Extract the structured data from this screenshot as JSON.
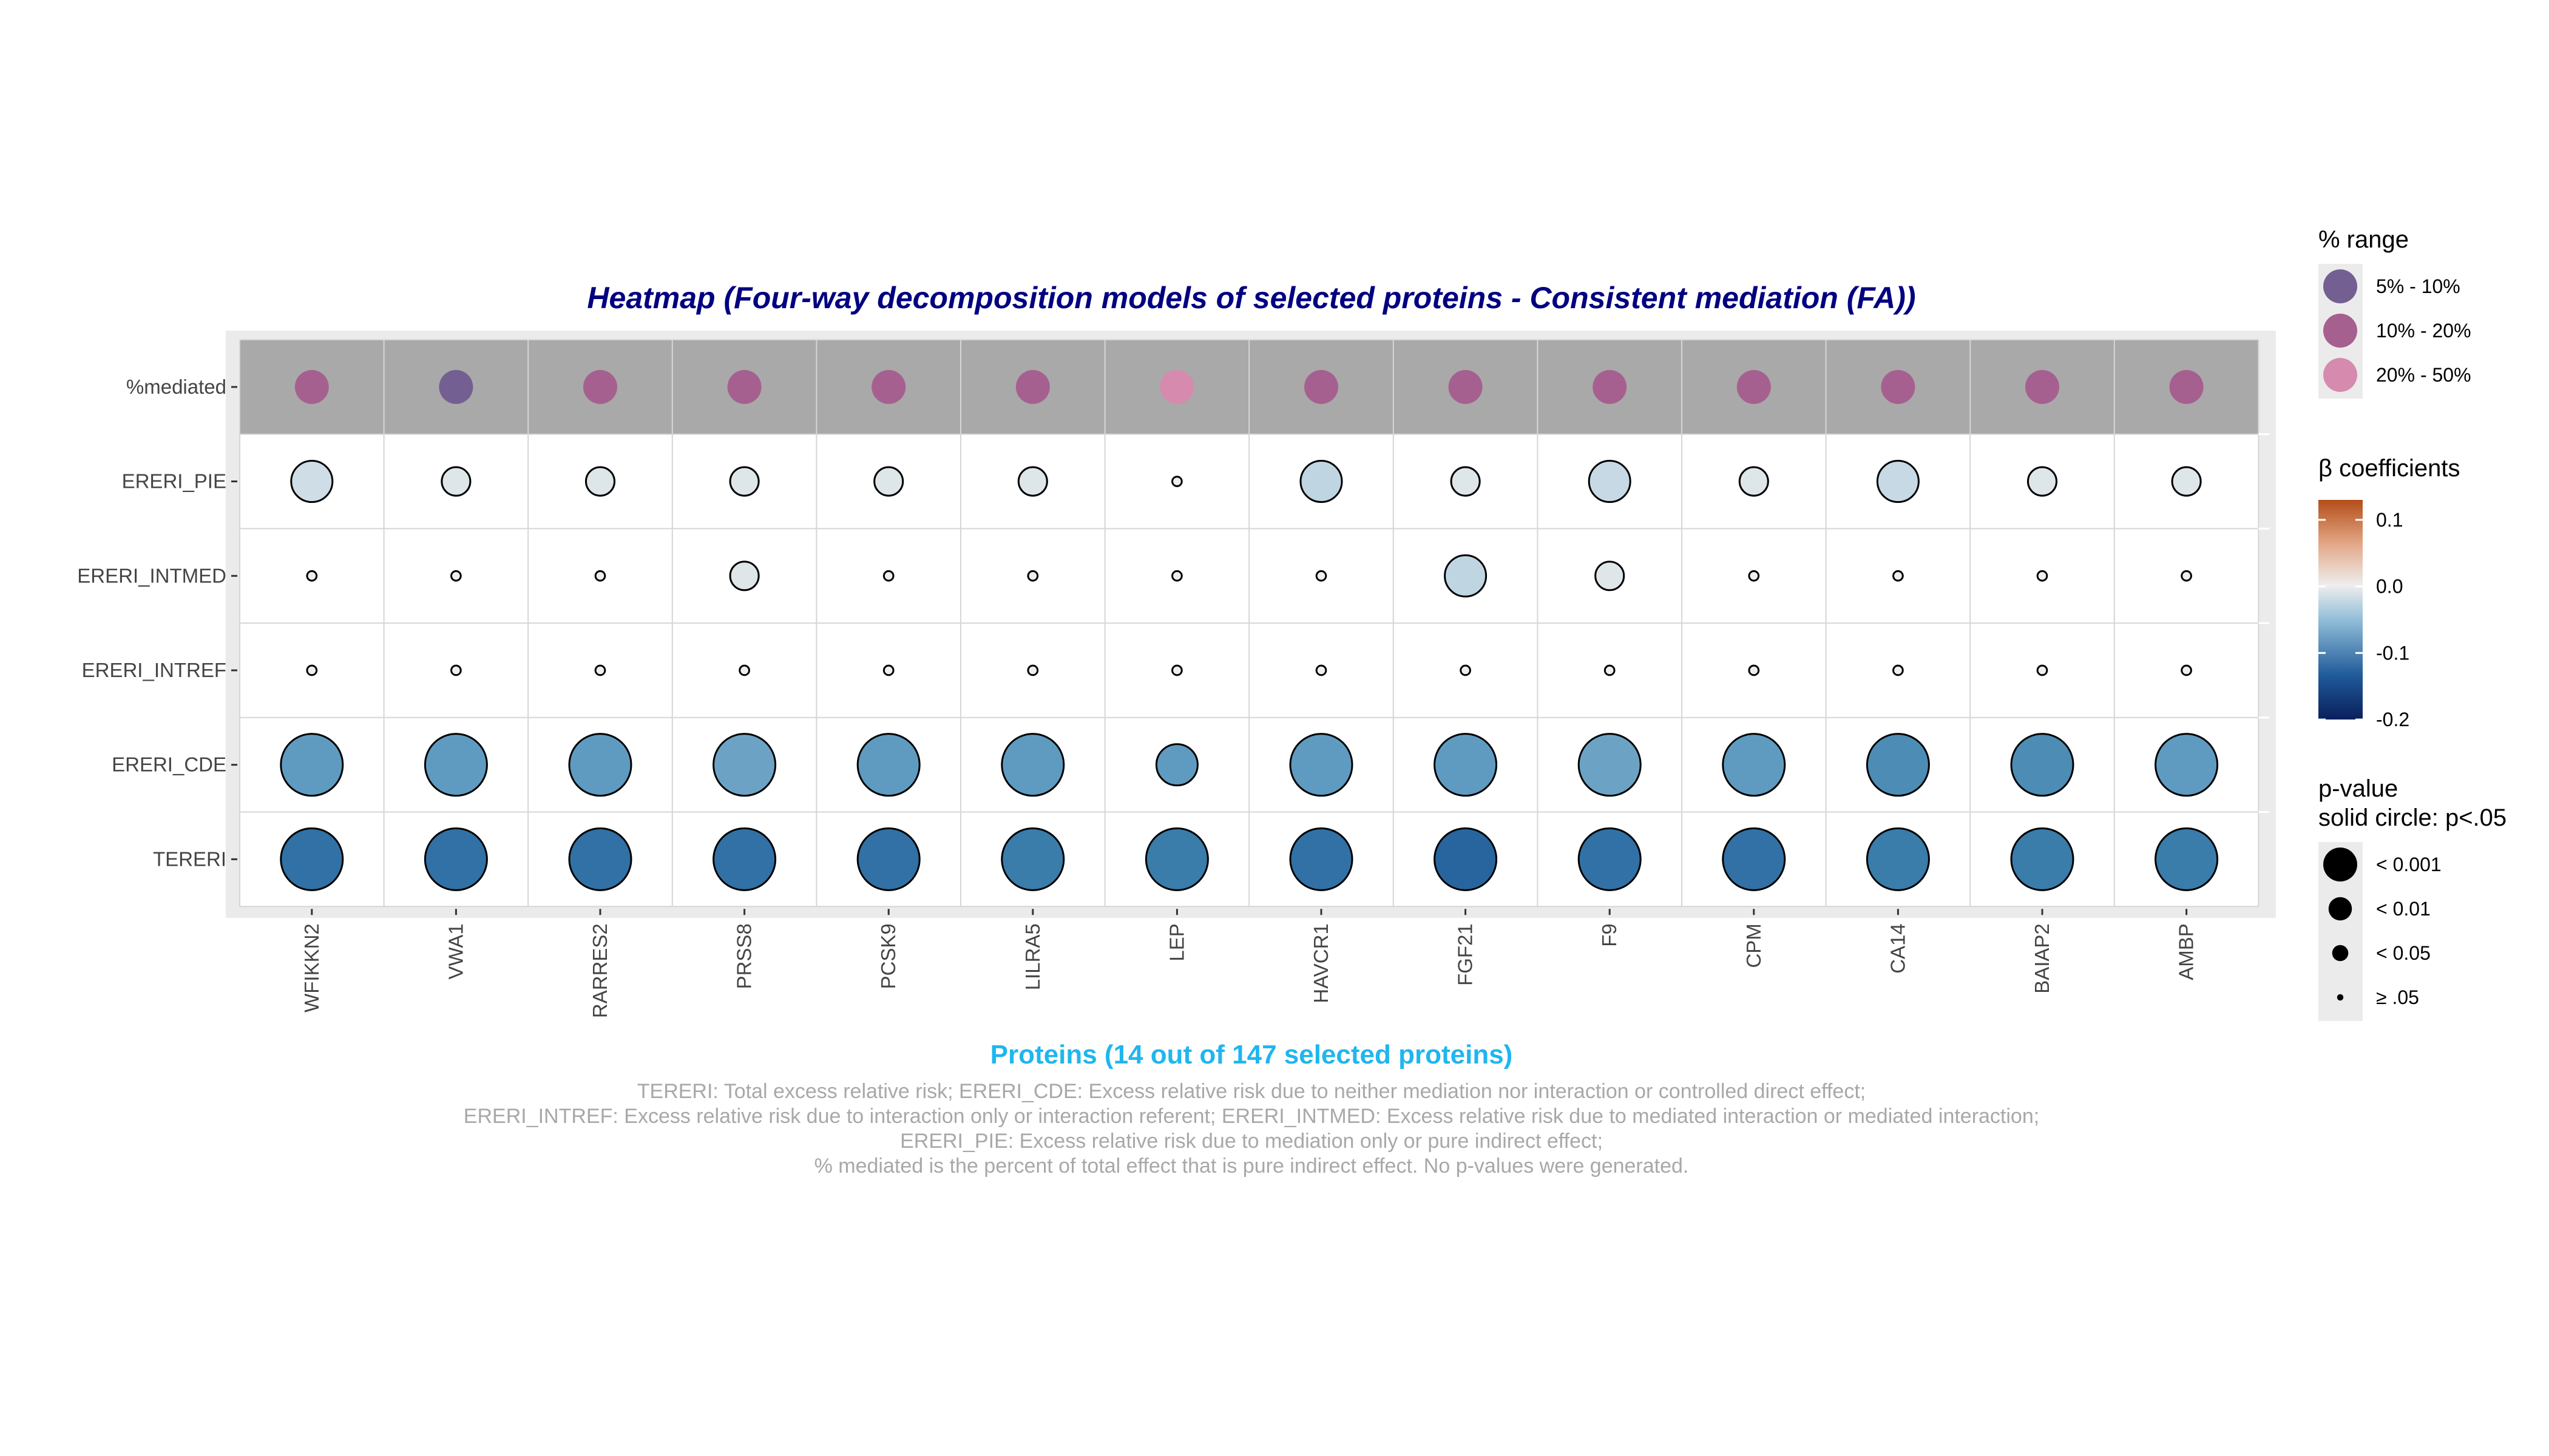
{
  "chart_data": {
    "type": "heatmap",
    "title": "Heatmap (Four-way decomposition models of selected proteins - Consistent mediation (FA))",
    "xlabel": "Proteins (14 out of 147 selected proteins)",
    "caption": [
      "TERERI: Total excess relative risk; ERERI_CDE: Excess relative risk due to neither mediation nor interaction or controlled direct effect;",
      "ERERI_INTREF: Excess relative risk due to interaction only or interaction referent; ERERI_INTMED: Excess relative risk due to mediated interaction or mediated interaction;",
      "ERERI_PIE: Excess relative risk due to mediation only or pure indirect effect;",
      "% mediated is the percent of total effect that is pure indirect effect. No p-values were generated."
    ],
    "columns": [
      "WFIKKN2",
      "VWA1",
      "RARRES2",
      "PRSS8",
      "PCSK9",
      "LILRA5",
      "LEP",
      "HAVCR1",
      "FGF21",
      "F9",
      "CPM",
      "CA14",
      "BAIAP2",
      "AMBP"
    ],
    "rows": [
      "%mediated",
      "ERERI_PIE",
      "ERERI_INTMED",
      "ERERI_INTREF",
      "ERERI_CDE",
      "TERERI"
    ],
    "mediated_range": [
      "10% - 20%",
      "5% - 10%",
      "10% - 20%",
      "10% - 20%",
      "10% - 20%",
      "10% - 20%",
      "20% - 50%",
      "10% - 20%",
      "10% - 20%",
      "10% - 20%",
      "10% - 20%",
      "10% - 20%",
      "10% - 20%",
      "10% - 20%"
    ],
    "beta": {
      "ERERI_PIE": [
        -0.02,
        -0.01,
        -0.01,
        -0.01,
        -0.01,
        -0.01,
        0.0,
        -0.03,
        -0.01,
        -0.025,
        -0.01,
        -0.025,
        -0.01,
        -0.01
      ],
      "ERERI_INTMED": [
        0.0,
        0.0,
        0.0,
        -0.01,
        0.0,
        0.0,
        0.0,
        0.0,
        -0.03,
        -0.01,
        0.0,
        0.0,
        0.0,
        0.0
      ],
      "ERERI_INTREF": [
        0.0,
        0.0,
        0.0,
        0.0,
        0.0,
        0.0,
        0.0,
        0.0,
        0.0,
        0.0,
        0.0,
        0.0,
        0.0,
        0.0
      ],
      "ERERI_CDE": [
        -0.1,
        -0.1,
        -0.1,
        -0.09,
        -0.1,
        -0.1,
        -0.1,
        -0.1,
        -0.1,
        -0.09,
        -0.1,
        -0.11,
        -0.11,
        -0.1
      ],
      "TERERI": [
        -0.13,
        -0.13,
        -0.13,
        -0.13,
        -0.13,
        -0.12,
        -0.12,
        -0.13,
        -0.14,
        -0.13,
        -0.13,
        -0.12,
        -0.12,
        -0.12
      ]
    },
    "circle_size": {
      "ERERI_PIE": [
        0.52,
        0.36,
        0.36,
        0.36,
        0.36,
        0.36,
        0.12,
        0.52,
        0.36,
        0.52,
        0.36,
        0.52,
        0.36,
        0.36
      ],
      "ERERI_INTMED": [
        0.12,
        0.12,
        0.12,
        0.36,
        0.12,
        0.12,
        0.12,
        0.12,
        0.52,
        0.36,
        0.12,
        0.12,
        0.12,
        0.12
      ],
      "ERERI_INTREF": [
        0.12,
        0.12,
        0.12,
        0.12,
        0.12,
        0.12,
        0.12,
        0.12,
        0.12,
        0.12,
        0.12,
        0.12,
        0.12,
        0.12
      ],
      "ERERI_CDE": [
        0.78,
        0.78,
        0.78,
        0.78,
        0.78,
        0.78,
        0.52,
        0.78,
        0.78,
        0.78,
        0.78,
        0.78,
        0.78,
        0.78
      ],
      "TERERI": [
        0.78,
        0.78,
        0.78,
        0.78,
        0.78,
        0.78,
        0.78,
        0.78,
        0.78,
        0.78,
        0.78,
        0.78,
        0.78,
        0.78
      ]
    },
    "legend_range": {
      "title": "% range",
      "items": [
        {
          "label": "5% - 10%",
          "color": "#735f91"
        },
        {
          "label": "10% - 20%",
          "color": "#a6608f"
        },
        {
          "label": "20% - 50%",
          "color": "#d68aae"
        }
      ]
    },
    "legend_beta": {
      "title": "β coefficients",
      "ticks": [
        0.1,
        0.0,
        -0.1,
        -0.2
      ],
      "tick_labels": [
        "0.1",
        "0.0",
        "-0.1",
        "-0.2"
      ],
      "range": [
        -0.2,
        0.13
      ],
      "colors": [
        "#0a2d6e",
        "#2166ac",
        "#92c5de",
        "#f0f0f0",
        "#f4a582",
        "#b2582b"
      ]
    },
    "legend_p": {
      "title_line1": "p-value",
      "title_line2": "solid circle: p<.05",
      "items": [
        {
          "label": "< 0.001",
          "size": 0.8
        },
        {
          "label": "< 0.01",
          "size": 0.55
        },
        {
          "label": "< 0.05",
          "size": 0.38
        },
        {
          "label": "≥ .05",
          "size": 0.15
        }
      ]
    },
    "panel_background": "#ebebeb",
    "mediated_row_background": "#a9a9a9",
    "legend_placement": "right"
  }
}
